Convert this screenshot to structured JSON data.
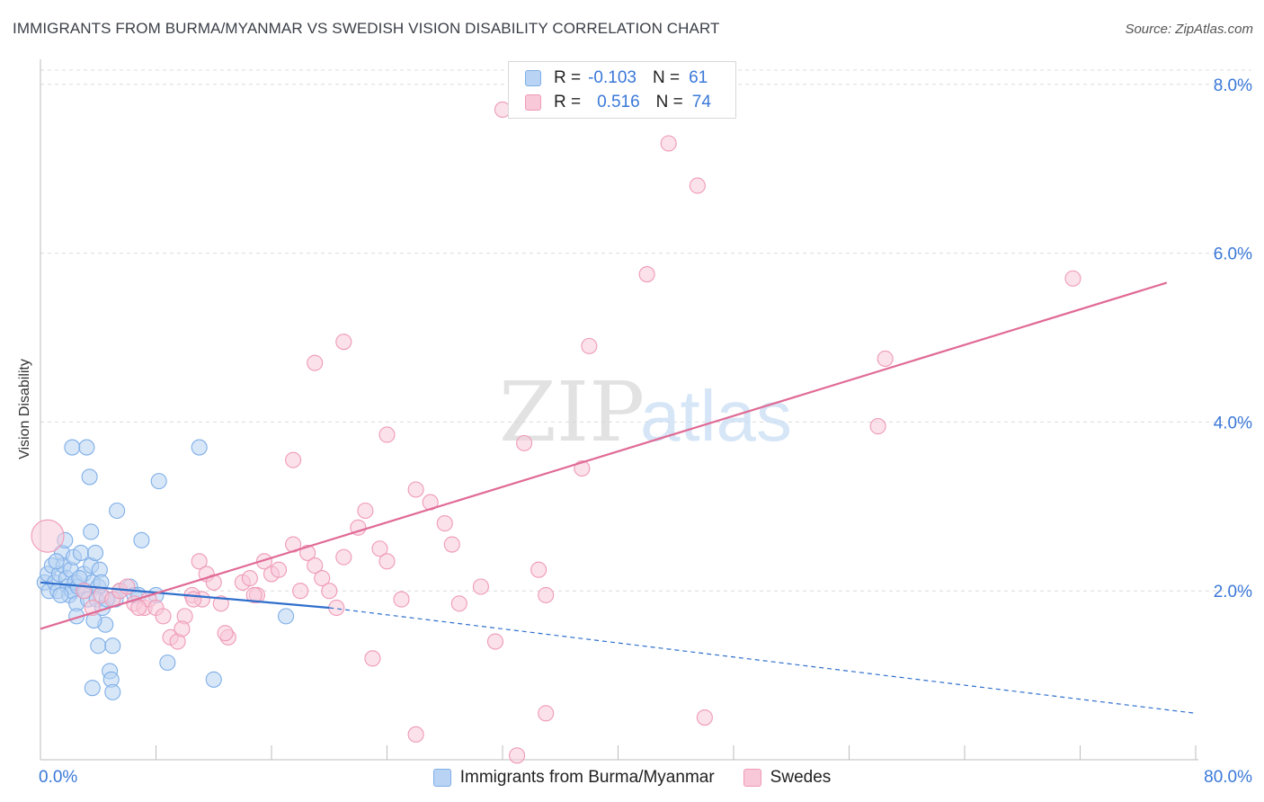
{
  "title": "IMMIGRANTS FROM BURMA/MYANMAR VS SWEDISH VISION DISABILITY CORRELATION CHART",
  "source": "Source: ZipAtlas.com",
  "chart_data": {
    "type": "scatter",
    "title": "IMMIGRANTS FROM BURMA/MYANMAR VS SWEDISH VISION DISABILITY CORRELATION CHART",
    "ylabel": "Vision Disability",
    "xlim": [
      0,
      80
    ],
    "ylim": [
      0,
      8.2
    ],
    "x_tick_labels": [
      "0.0%",
      "80.0%"
    ],
    "y_ticks": [
      2,
      4,
      6,
      8
    ],
    "y_tick_labels": [
      "2.0%",
      "4.0%",
      "6.0%",
      "8.0%"
    ],
    "grid": "horizontal dashed",
    "watermark": {
      "zip": "ZIP",
      "atlas": "atlas"
    },
    "legend_top": {
      "rows": [
        {
          "r_label": "R =",
          "r_value": "-0.103",
          "n_label": "N =",
          "n_value": "61"
        },
        {
          "r_label": "R =",
          "r_value": "0.516",
          "n_label": "N =",
          "n_value": "74"
        }
      ]
    },
    "series": [
      {
        "name": "Immigrants from Burma/Myanmar",
        "color": "#7eaee8",
        "fill": "#b8d3f3",
        "line_color": "#2f6fcc",
        "trend": {
          "x0": 0,
          "y0": 2.1,
          "x1": 20,
          "y1": 1.8,
          "dash_to_x": 80,
          "dash_to_y": 0.55
        },
        "points": [
          [
            0.3,
            2.1
          ],
          [
            0.5,
            2.2
          ],
          [
            0.6,
            2.0
          ],
          [
            0.8,
            2.3
          ],
          [
            1.0,
            2.1
          ],
          [
            1.2,
            2.0
          ],
          [
            1.3,
            2.2
          ],
          [
            1.5,
            2.45
          ],
          [
            1.6,
            2.3
          ],
          [
            1.7,
            2.6
          ],
          [
            1.8,
            2.15
          ],
          [
            1.9,
            2.05
          ],
          [
            2.0,
            1.95
          ],
          [
            2.1,
            2.25
          ],
          [
            2.2,
            2.0
          ],
          [
            2.3,
            2.4
          ],
          [
            2.4,
            2.1
          ],
          [
            2.5,
            1.85
          ],
          [
            2.5,
            1.7
          ],
          [
            2.6,
            2.05
          ],
          [
            2.2,
            3.7
          ],
          [
            3.2,
            3.7
          ],
          [
            2.8,
            2.45
          ],
          [
            3.0,
            2.2
          ],
          [
            3.1,
            2.0
          ],
          [
            3.3,
            1.9
          ],
          [
            3.5,
            2.3
          ],
          [
            3.6,
            2.1
          ],
          [
            3.8,
            2.45
          ],
          [
            4.0,
            2.05
          ],
          [
            3.9,
            1.9
          ],
          [
            4.1,
            2.25
          ],
          [
            4.2,
            2.1
          ],
          [
            3.4,
            3.35
          ],
          [
            3.5,
            2.7
          ],
          [
            4.3,
            1.8
          ],
          [
            4.5,
            1.6
          ],
          [
            4.0,
            1.35
          ],
          [
            5.0,
            1.35
          ],
          [
            4.8,
            1.05
          ],
          [
            4.9,
            0.95
          ],
          [
            5.0,
            0.8
          ],
          [
            3.6,
            0.85
          ],
          [
            5.2,
            1.9
          ],
          [
            5.5,
            2.0
          ],
          [
            6.2,
            2.05
          ],
          [
            6.5,
            1.95
          ],
          [
            5.3,
            2.95
          ],
          [
            7.0,
            2.6
          ],
          [
            8.0,
            1.95
          ],
          [
            8.2,
            3.3
          ],
          [
            8.8,
            1.15
          ],
          [
            11.0,
            3.7
          ],
          [
            12.0,
            0.95
          ],
          [
            17.0,
            1.7
          ],
          [
            1.4,
            1.95
          ],
          [
            2.7,
            2.15
          ],
          [
            3.7,
            1.65
          ],
          [
            4.6,
            1.9
          ],
          [
            1.1,
            2.35
          ],
          [
            6.8,
            1.95
          ]
        ]
      },
      {
        "name": "Swedes",
        "color": "#ef9ab6",
        "fill": "#f8c8d8",
        "line_color": "#e06a95",
        "trend": {
          "x0": 0,
          "y0": 1.55,
          "x1": 78,
          "y1": 5.65
        },
        "points": [
          [
            0.5,
            2.65
          ],
          [
            3.0,
            2.0
          ],
          [
            4.2,
            1.95
          ],
          [
            5.0,
            1.9
          ],
          [
            5.5,
            2.0
          ],
          [
            6.0,
            2.05
          ],
          [
            6.5,
            1.85
          ],
          [
            7.2,
            1.8
          ],
          [
            7.5,
            1.9
          ],
          [
            8.0,
            1.8
          ],
          [
            8.5,
            1.7
          ],
          [
            9.0,
            1.45
          ],
          [
            9.5,
            1.4
          ],
          [
            10.0,
            1.7
          ],
          [
            10.5,
            1.95
          ],
          [
            11.0,
            2.35
          ],
          [
            11.5,
            2.2
          ],
          [
            12.0,
            2.1
          ],
          [
            12.5,
            1.85
          ],
          [
            13.0,
            1.45
          ],
          [
            14.0,
            2.1
          ],
          [
            14.5,
            2.15
          ],
          [
            15.0,
            1.95
          ],
          [
            15.5,
            2.35
          ],
          [
            16.0,
            2.2
          ],
          [
            16.5,
            2.25
          ],
          [
            17.5,
            2.55
          ],
          [
            18.0,
            2.0
          ],
          [
            18.5,
            2.45
          ],
          [
            19.0,
            2.3
          ],
          [
            19.5,
            2.15
          ],
          [
            20.0,
            2.0
          ],
          [
            20.5,
            1.8
          ],
          [
            21.0,
            2.4
          ],
          [
            22.0,
            2.75
          ],
          [
            22.5,
            2.95
          ],
          [
            23.5,
            2.5
          ],
          [
            24.0,
            2.35
          ],
          [
            25.0,
            1.9
          ],
          [
            26.0,
            3.2
          ],
          [
            27.0,
            3.05
          ],
          [
            28.0,
            2.8
          ],
          [
            28.5,
            2.55
          ],
          [
            29.0,
            1.85
          ],
          [
            30.5,
            2.05
          ],
          [
            31.5,
            1.4
          ],
          [
            33.5,
            3.75
          ],
          [
            34.5,
            2.25
          ],
          [
            35.0,
            1.95
          ],
          [
            37.5,
            3.45
          ],
          [
            38.0,
            4.9
          ],
          [
            43.5,
            7.3
          ],
          [
            45.5,
            6.8
          ],
          [
            46.0,
            0.5
          ],
          [
            26.0,
            0.3
          ],
          [
            33.0,
            0.05
          ],
          [
            35.0,
            0.55
          ],
          [
            42.0,
            5.75
          ],
          [
            58.5,
            4.75
          ],
          [
            58.0,
            3.95
          ],
          [
            71.5,
            5.7
          ],
          [
            32.0,
            7.7
          ],
          [
            21.0,
            4.95
          ],
          [
            19.0,
            4.7
          ],
          [
            17.5,
            3.55
          ],
          [
            24.0,
            3.85
          ],
          [
            23.0,
            1.2
          ],
          [
            12.8,
            1.5
          ],
          [
            6.8,
            1.8
          ],
          [
            9.8,
            1.55
          ],
          [
            14.8,
            1.95
          ],
          [
            11.2,
            1.9
          ],
          [
            3.6,
            1.8
          ],
          [
            10.6,
            1.9
          ]
        ]
      }
    ]
  },
  "legend_bottom": [
    {
      "label": "Immigrants from Burma/Myanmar"
    },
    {
      "label": "Swedes"
    }
  ]
}
